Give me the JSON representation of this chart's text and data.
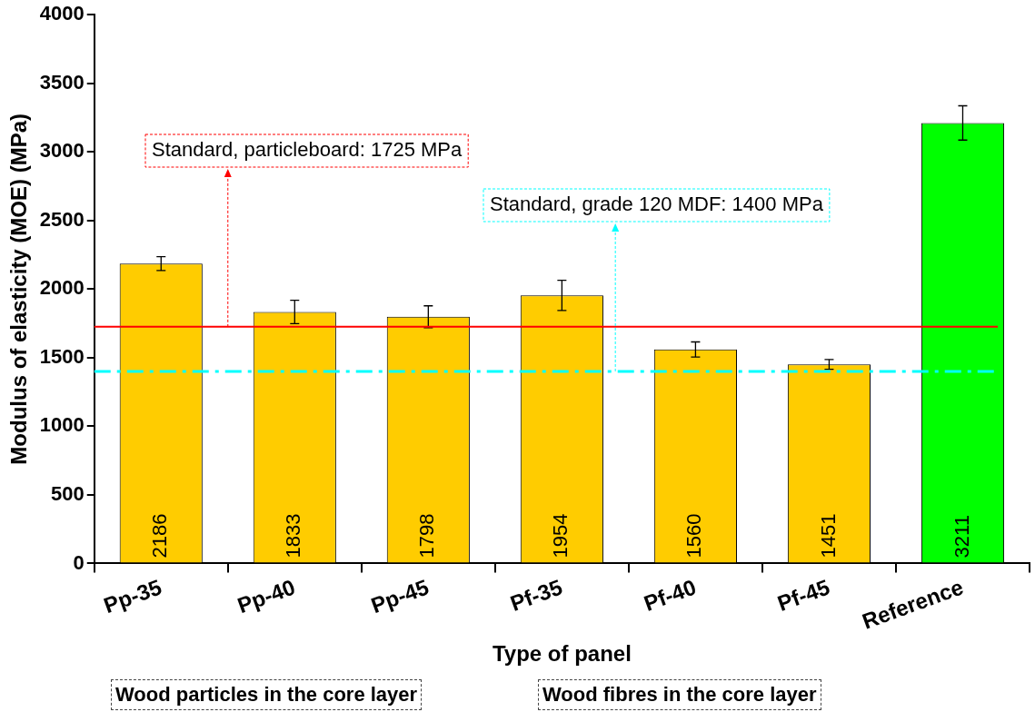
{
  "chart_data": {
    "type": "bar",
    "xlabel": "Type of panel",
    "ylabel": "Modulus of elasticity (MOE) (MPa)",
    "categories": [
      "Pp-35",
      "Pp-40",
      "Pp-45",
      "Pf-35",
      "Pf-40",
      "Pf-45",
      "Reference"
    ],
    "values": [
      2186,
      1833,
      1798,
      1954,
      1560,
      1451,
      3211
    ],
    "colors": [
      "#ffcc00",
      "#ffcc00",
      "#ffcc00",
      "#ffcc00",
      "#ffcc00",
      "#ffcc00",
      "#00ff00"
    ],
    "errors": [
      50,
      85,
      80,
      110,
      55,
      35,
      125
    ],
    "data_labels": true,
    "ylim": [
      0,
      4000
    ],
    "yticks": [
      0,
      500,
      1000,
      1500,
      2000,
      2500,
      3000,
      3500,
      4000
    ],
    "grid": false,
    "legend": false,
    "ref_lines": [
      {
        "axis": "y",
        "value": 1725,
        "label": "Standard, particleboard: 1725 MPa",
        "color": "#ff0000",
        "line_style": "solid"
      },
      {
        "axis": "y",
        "value": 1400,
        "label": "Standard, grade 120 MDF: 1400 MPa",
        "color": "#00ffff",
        "line_style": "dashed"
      }
    ],
    "annotations": [
      "Wood particles in the core layer",
      "Wood fibres in the core layer"
    ]
  }
}
